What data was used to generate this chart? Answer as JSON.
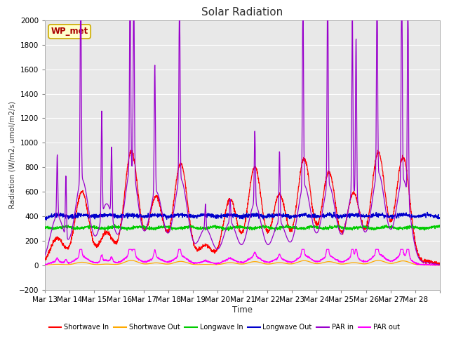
{
  "title": "Solar Radiation",
  "ylabel": "Radiation (W/m2, umol/m2/s)",
  "xlabel": "Time",
  "ylim": [
    -200,
    2000
  ],
  "yticks": [
    -200,
    0,
    200,
    400,
    600,
    800,
    1000,
    1200,
    1400,
    1600,
    1800,
    2000
  ],
  "n_days": 16,
  "start_day": 13,
  "x_tick_labels": [
    "Mar 13",
    "Mar 14",
    "Mar 15",
    "Mar 16",
    "Mar 17",
    "Mar 18",
    "Mar 19",
    "Mar 20",
    "Mar 21",
    "Mar 22",
    "Mar 23",
    "Mar 24",
    "Mar 25",
    "Mar 26",
    "Mar 27",
    "Mar 28"
  ],
  "wp_met_label": "WP_met",
  "wp_met_box_color": "#ffffcc",
  "wp_met_border_color": "#ccaa00",
  "wp_met_text_color": "#aa0000",
  "legend_entries": [
    {
      "label": "Shortwave In",
      "color": "#ff0000"
    },
    {
      "label": "Shortwave Out",
      "color": "#ffaa00"
    },
    {
      "label": "Longwave In",
      "color": "#00cc00"
    },
    {
      "label": "Longwave Out",
      "color": "#0000cc"
    },
    {
      "label": "PAR in",
      "color": "#9900cc"
    },
    {
      "label": "PAR out",
      "color": "#ff00ff"
    }
  ],
  "background_color": "#e8e8e8",
  "grid_color": "#ffffff",
  "fig_bg": "#ffffff"
}
